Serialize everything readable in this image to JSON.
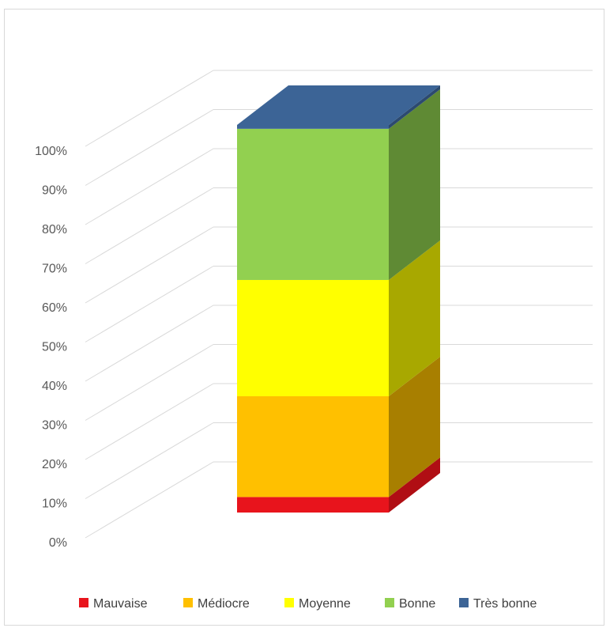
{
  "chart_data": {
    "type": "bar",
    "stacked": true,
    "three_d": true,
    "categories": [
      ""
    ],
    "series": [
      {
        "name": "Mauvaise",
        "values": [
          4
        ],
        "color": "#e8141c",
        "side_color": "#b00e14"
      },
      {
        "name": "Médiocre",
        "values": [
          26
        ],
        "color": "#ffc000",
        "side_color": "#a87f00"
      },
      {
        "name": "Moyenne",
        "values": [
          30
        ],
        "color": "#ffff00",
        "side_color": "#a8a800"
      },
      {
        "name": "Bonne",
        "values": [
          39
        ],
        "color": "#92d050",
        "side_color": "#5f8a34"
      },
      {
        "name": "Très bonne",
        "values": [
          1
        ],
        "color": "#3c6496",
        "side_color": "#2c4a70"
      }
    ],
    "y_ticks": [
      "0%",
      "10%",
      "20%",
      "30%",
      "40%",
      "50%",
      "60%",
      "70%",
      "80%",
      "90%",
      "100%"
    ],
    "ylim": [
      0,
      100
    ],
    "grid": true,
    "legend_position": "bottom"
  }
}
